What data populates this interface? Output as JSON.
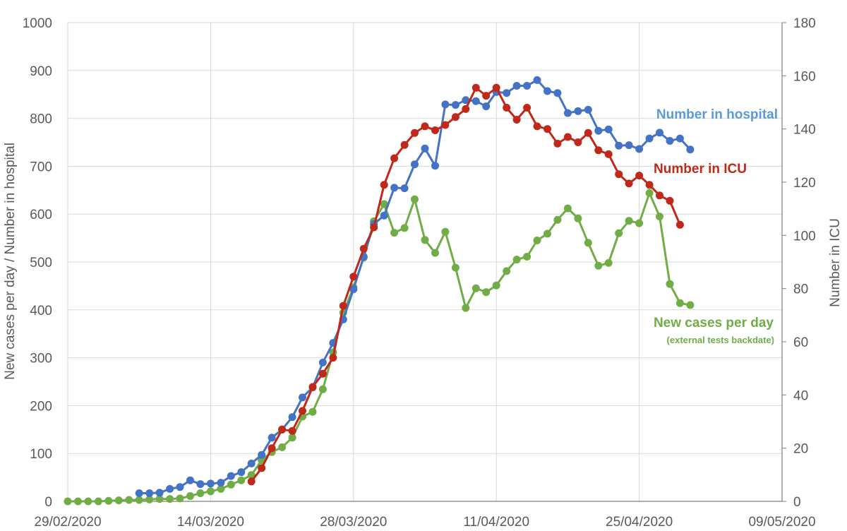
{
  "chart_data": {
    "type": "line",
    "title": "",
    "ylabel_left": "New cases per day / Number in hospital",
    "ylabel_right": "Number in ICU",
    "xlabel": "",
    "x_start": "29/02/2020",
    "x_end": "09/05/2020",
    "x_ticks": [
      "29/02/2020",
      "14/03/2020",
      "28/03/2020",
      "11/04/2020",
      "25/04/2020",
      "09/05/2020"
    ],
    "y_left_lim": [
      0,
      1000
    ],
    "y_left_ticks": [
      "0",
      "100",
      "200",
      "300",
      "400",
      "500",
      "600",
      "700",
      "800",
      "900",
      "1000"
    ],
    "y_right_lim": [
      0,
      180
    ],
    "y_right_ticks": [
      "0",
      "20",
      "40",
      "60",
      "80",
      "100",
      "120",
      "140",
      "160",
      "180"
    ],
    "grid": true,
    "annotations": {
      "hospital": "Number in hospital",
      "icu": "Number in ICU",
      "cases": "New cases per day",
      "cases_note": "(external tests backdate)"
    },
    "series": [
      {
        "key": "hospital",
        "axis": "left",
        "color": "#4472C4",
        "points": [
          [
            "2020-03-07",
            17
          ],
          [
            "2020-03-08",
            17
          ],
          [
            "2020-03-09",
            18
          ],
          [
            "2020-03-10",
            26
          ],
          [
            "2020-03-11",
            30
          ],
          [
            "2020-03-12",
            44
          ],
          [
            "2020-03-13",
            36
          ],
          [
            "2020-03-14",
            37
          ],
          [
            "2020-03-15",
            39
          ],
          [
            "2020-03-16",
            53
          ],
          [
            "2020-03-17",
            61
          ],
          [
            "2020-03-18",
            79
          ],
          [
            "2020-03-19",
            97
          ],
          [
            "2020-03-20",
            133
          ],
          [
            "2020-03-21",
            150
          ],
          [
            "2020-03-22",
            176
          ],
          [
            "2020-03-23",
            217
          ],
          [
            "2020-03-24",
            238
          ],
          [
            "2020-03-25",
            290
          ],
          [
            "2020-03-26",
            331
          ],
          [
            "2020-03-27",
            380
          ],
          [
            "2020-03-28",
            443
          ],
          [
            "2020-03-29",
            511
          ],
          [
            "2020-03-30",
            579
          ],
          [
            "2020-03-31",
            597
          ],
          [
            "2020-04-01",
            655
          ],
          [
            "2020-04-02",
            654
          ],
          [
            "2020-04-03",
            704
          ],
          [
            "2020-04-04",
            737
          ],
          [
            "2020-04-05",
            701
          ],
          [
            "2020-04-06",
            829
          ],
          [
            "2020-04-07",
            828
          ],
          [
            "2020-04-08",
            838
          ],
          [
            "2020-04-09",
            836
          ],
          [
            "2020-04-10",
            825
          ],
          [
            "2020-04-11",
            855
          ],
          [
            "2020-04-12",
            853
          ],
          [
            "2020-04-13",
            868
          ],
          [
            "2020-04-14",
            868
          ],
          [
            "2020-04-15",
            880
          ],
          [
            "2020-04-16",
            857
          ],
          [
            "2020-04-17",
            853
          ],
          [
            "2020-04-18",
            811
          ],
          [
            "2020-04-19",
            815
          ],
          [
            "2020-04-20",
            818
          ],
          [
            "2020-04-21",
            774
          ],
          [
            "2020-04-22",
            777
          ],
          [
            "2020-04-23",
            743
          ],
          [
            "2020-04-24",
            744
          ],
          [
            "2020-04-25",
            736
          ],
          [
            "2020-04-26",
            758
          ],
          [
            "2020-04-27",
            770
          ],
          [
            "2020-04-28",
            753
          ],
          [
            "2020-04-29",
            758
          ],
          [
            "2020-04-30",
            735
          ]
        ]
      },
      {
        "key": "icu",
        "axis": "right",
        "color": "#C0281A",
        "points": [
          [
            "2020-03-18",
            7.5
          ],
          [
            "2020-03-19",
            12.5
          ],
          [
            "2020-03-20",
            20
          ],
          [
            "2020-03-21",
            27
          ],
          [
            "2020-03-22",
            26.5
          ],
          [
            "2020-03-23",
            34
          ],
          [
            "2020-03-24",
            43
          ],
          [
            "2020-03-25",
            48
          ],
          [
            "2020-03-26",
            54
          ],
          [
            "2020-03-27",
            73.5
          ],
          [
            "2020-03-28",
            84.5
          ],
          [
            "2020-03-29",
            95
          ],
          [
            "2020-03-30",
            103
          ],
          [
            "2020-03-31",
            119
          ],
          [
            "2020-04-01",
            129
          ],
          [
            "2020-04-02",
            134
          ],
          [
            "2020-04-03",
            138.5
          ],
          [
            "2020-04-04",
            141
          ],
          [
            "2020-04-05",
            139.5
          ],
          [
            "2020-04-06",
            141.5
          ],
          [
            "2020-04-07",
            144.5
          ],
          [
            "2020-04-08",
            147.5
          ],
          [
            "2020-04-09",
            155.5
          ],
          [
            "2020-04-10",
            152.5
          ],
          [
            "2020-04-11",
            155.5
          ],
          [
            "2020-04-12",
            148
          ],
          [
            "2020-04-13",
            143.5
          ],
          [
            "2020-04-14",
            148
          ],
          [
            "2020-04-15",
            141
          ],
          [
            "2020-04-16",
            140
          ],
          [
            "2020-04-17",
            134.5
          ],
          [
            "2020-04-18",
            137
          ],
          [
            "2020-04-19",
            135
          ],
          [
            "2020-04-20",
            138.5
          ],
          [
            "2020-04-21",
            132
          ],
          [
            "2020-04-22",
            130.5
          ],
          [
            "2020-04-23",
            123
          ],
          [
            "2020-04-24",
            119.5
          ],
          [
            "2020-04-25",
            122.5
          ],
          [
            "2020-04-26",
            119
          ],
          [
            "2020-04-27",
            115
          ],
          [
            "2020-04-28",
            113
          ],
          [
            "2020-04-29",
            104
          ]
        ]
      },
      {
        "key": "cases",
        "axis": "left",
        "color": "#70AD47",
        "points": [
          [
            "2020-02-29",
            0
          ],
          [
            "2020-03-01",
            0
          ],
          [
            "2020-03-02",
            0
          ],
          [
            "2020-03-03",
            0
          ],
          [
            "2020-03-04",
            1
          ],
          [
            "2020-03-05",
            2
          ],
          [
            "2020-03-06",
            3
          ],
          [
            "2020-03-07",
            3
          ],
          [
            "2020-03-08",
            4
          ],
          [
            "2020-03-09",
            5
          ],
          [
            "2020-03-10",
            5
          ],
          [
            "2020-03-11",
            6
          ],
          [
            "2020-03-12",
            11
          ],
          [
            "2020-03-13",
            17
          ],
          [
            "2020-03-14",
            21
          ],
          [
            "2020-03-15",
            26
          ],
          [
            "2020-03-16",
            35
          ],
          [
            "2020-03-17",
            44
          ],
          [
            "2020-03-18",
            55
          ],
          [
            "2020-03-19",
            86
          ],
          [
            "2020-03-20",
            103
          ],
          [
            "2020-03-21",
            113
          ],
          [
            "2020-03-22",
            133
          ],
          [
            "2020-03-23",
            177
          ],
          [
            "2020-03-24",
            187
          ],
          [
            "2020-03-25",
            234
          ],
          [
            "2020-03-26",
            311
          ],
          [
            "2020-03-27",
            394
          ],
          [
            "2020-03-28",
            447
          ],
          [
            "2020-03-29",
            509
          ],
          [
            "2020-03-30",
            585
          ],
          [
            "2020-03-31",
            621
          ],
          [
            "2020-04-01",
            561
          ],
          [
            "2020-04-02",
            571
          ],
          [
            "2020-04-03",
            631
          ],
          [
            "2020-04-04",
            546
          ],
          [
            "2020-04-05",
            519
          ],
          [
            "2020-04-06",
            563
          ],
          [
            "2020-04-07",
            488
          ],
          [
            "2020-04-08",
            404
          ],
          [
            "2020-04-09",
            445
          ],
          [
            "2020-04-10",
            437
          ],
          [
            "2020-04-11",
            451
          ],
          [
            "2020-04-12",
            481
          ],
          [
            "2020-04-13",
            505
          ],
          [
            "2020-04-14",
            511
          ],
          [
            "2020-04-15",
            545
          ],
          [
            "2020-04-16",
            559
          ],
          [
            "2020-04-17",
            588
          ],
          [
            "2020-04-18",
            612
          ],
          [
            "2020-04-19",
            591
          ],
          [
            "2020-04-20",
            540
          ],
          [
            "2020-04-21",
            492
          ],
          [
            "2020-04-22",
            498
          ],
          [
            "2020-04-23",
            560
          ],
          [
            "2020-04-24",
            586
          ],
          [
            "2020-04-25",
            581
          ],
          [
            "2020-04-26",
            644
          ],
          [
            "2020-04-27",
            595
          ],
          [
            "2020-04-28",
            454
          ],
          [
            "2020-04-29",
            414
          ],
          [
            "2020-04-30",
            410
          ]
        ]
      }
    ]
  }
}
